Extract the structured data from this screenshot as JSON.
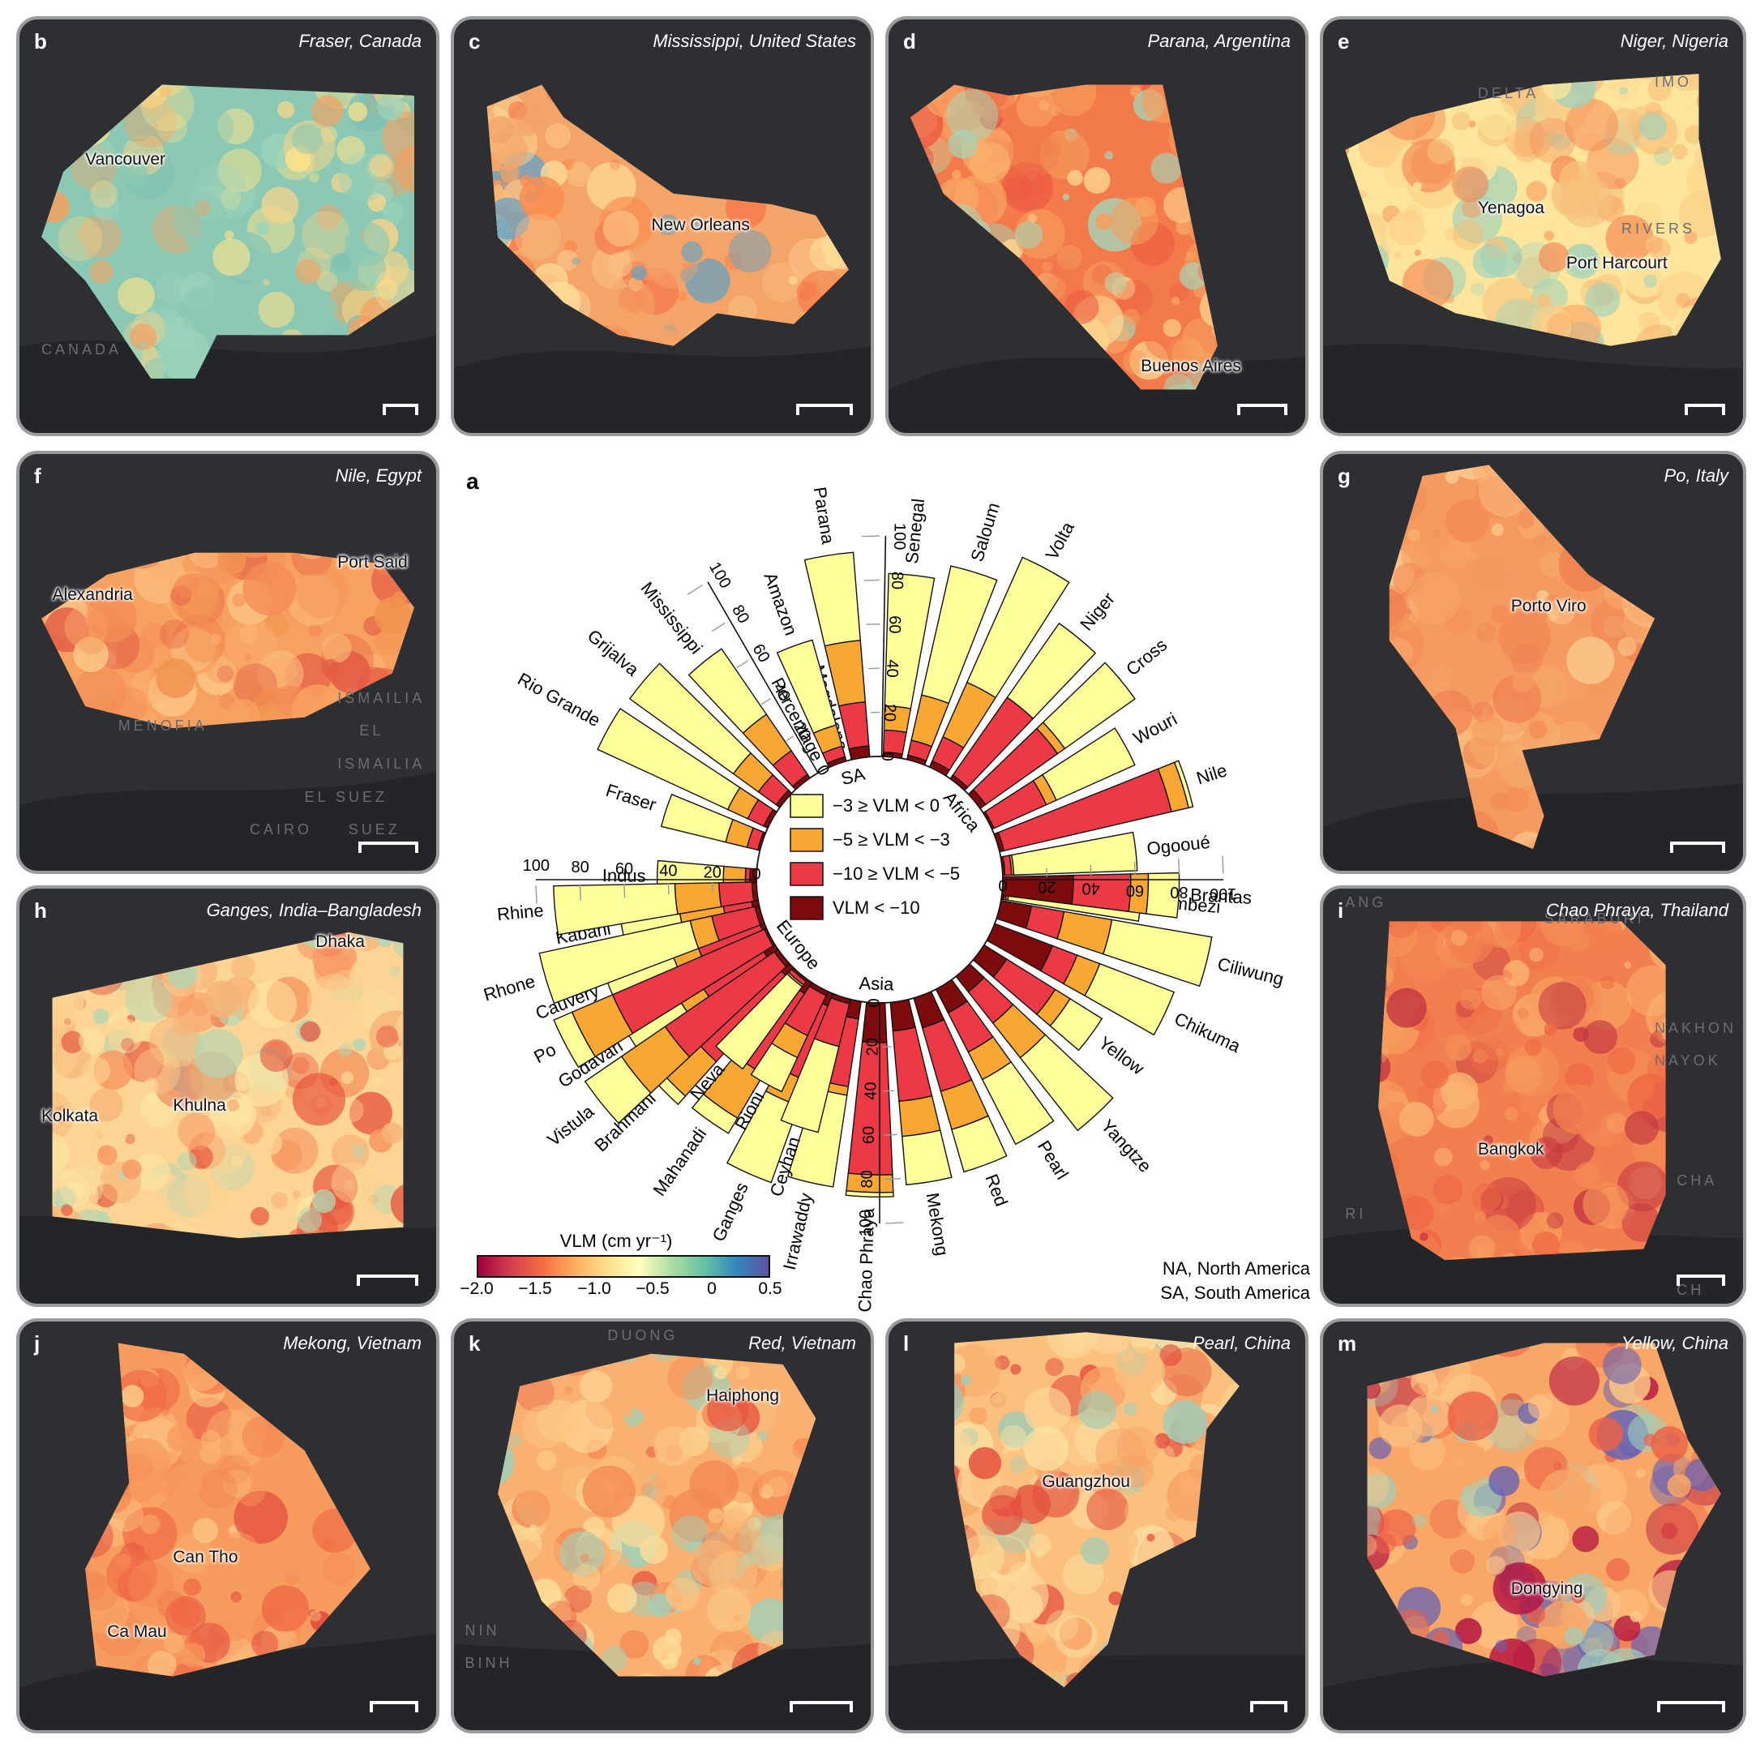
{
  "panels": {
    "b": {
      "label": "b",
      "title": "Fraser, Canada",
      "cities": [
        "Vancouver"
      ],
      "bg": [
        "CANADA"
      ]
    },
    "c": {
      "label": "c",
      "title": "Mississippi, United States",
      "cities": [
        "New Orleans"
      ],
      "bg": []
    },
    "d": {
      "label": "d",
      "title": "Parana, Argentina",
      "cities": [
        "Buenos Aires"
      ],
      "bg": []
    },
    "e": {
      "label": "e",
      "title": "Niger, Nigeria",
      "cities": [
        "Yenagoa",
        "Port Harcourt"
      ],
      "bg": [
        "DELTA",
        "IMO",
        "RIVERS"
      ]
    },
    "f": {
      "label": "f",
      "title": "Nile, Egypt",
      "cities": [
        "Alexandria",
        "Port Said"
      ],
      "bg": [
        "MENOFIA",
        "ISMAILIA",
        "EL",
        "ISMAILIA",
        "EL SUEZ",
        "CAIRO",
        "SUEZ"
      ]
    },
    "g": {
      "label": "g",
      "title": "Po, Italy",
      "cities": [
        "Porto Viro"
      ],
      "bg": []
    },
    "h": {
      "label": "h",
      "title": "Ganges, India–Bangladesh",
      "cities": [
        "Dhaka",
        "Kolkata",
        "Khulna"
      ],
      "bg": []
    },
    "i": {
      "label": "i",
      "title": "Chao Phraya, Thailand",
      "cities": [
        "Bangkok"
      ],
      "bg": [
        "ANG",
        "SARABURI",
        "NAKHON",
        "NAYOK",
        "CHA",
        "RI",
        "CH"
      ]
    },
    "j": {
      "label": "j",
      "title": "Mekong, Vietnam",
      "cities": [
        "Can Tho",
        "Ca Mau"
      ],
      "bg": []
    },
    "k": {
      "label": "k",
      "title": "Red, Vietnam",
      "cities": [
        "Haiphong"
      ],
      "bg": [
        "DUONG",
        "NIN",
        "BINH"
      ]
    },
    "l": {
      "label": "l",
      "title": "Pearl, China",
      "cities": [
        "Guangzhou"
      ],
      "bg": []
    },
    "m": {
      "label": "m",
      "title": "Yellow, China",
      "cities": [
        "Dongying"
      ],
      "bg": []
    }
  },
  "legend": {
    "items": [
      {
        "label": "−3 ≥ VLM < 0",
        "color": "#ffff99"
      },
      {
        "label": "−5 ≥ VLM < −3",
        "color": "#f8a733"
      },
      {
        "label": "−10 ≥ VLM < −5",
        "color": "#ec3946"
      },
      {
        "label": "VLM < −10",
        "color": "#7d0b0d"
      }
    ]
  },
  "colorbar": {
    "title": "VLM (cm yr⁻¹)",
    "ticks": [
      "−2.0",
      "−1.5",
      "−1.0",
      "−0.5",
      "0",
      "0.5"
    ],
    "range": [
      -2.0,
      0.5
    ]
  },
  "abbreviations": [
    "NA, North America",
    "SA, South America"
  ],
  "chart_data": {
    "type": "bar",
    "label": "a",
    "layout": "radial stacked bar",
    "value_range": [
      0,
      100
    ],
    "radial_tick_labels": [
      "0",
      "20",
      "40",
      "60",
      "80",
      "100"
    ],
    "legend_placement": "center",
    "series_names": [
      "−3 ≥ VLM < 0",
      "−5 ≥ VLM < −3",
      "−10 ≥ VLM < −5",
      "VLM < −10"
    ],
    "groups": [
      {
        "name": "Africa",
        "deltas": [
          {
            "name": "Senegal",
            "values": [
              60,
              11,
              10,
              2
            ]
          },
          {
            "name": "Saloum",
            "values": [
              60,
              21,
              7,
              2
            ]
          },
          {
            "name": "Volta",
            "values": [
              62,
              27,
              12,
              3
            ]
          },
          {
            "name": "Niger",
            "values": [
              41,
              0,
              43,
              2
            ]
          },
          {
            "name": "Cross",
            "values": [
              39,
              4,
              40,
              3
            ]
          },
          {
            "name": "Wouri",
            "values": [
              39,
              5,
              26,
              1
            ]
          },
          {
            "name": "Nile",
            "values": [
              2,
              8,
              78,
              2
            ]
          },
          {
            "name": "Ogooué",
            "values": [
              56,
              1,
              3,
              1
            ]
          },
          {
            "name": "Zambezi",
            "values": [
              60,
              1,
              1,
              1
            ]
          }
        ]
      },
      {
        "name": "Asia",
        "deltas": [
          {
            "name": "Brantas",
            "values": [
              14,
              8,
              26,
              32
            ]
          },
          {
            "name": "Ciliwung",
            "values": [
              46,
              22,
              15,
              14
            ]
          },
          {
            "name": "Chikuma",
            "values": [
              36,
              11,
              12,
              28
            ]
          },
          {
            "name": "Yellow",
            "values": [
              17,
              8,
              26,
              12
            ]
          },
          {
            "name": "Yangtze",
            "values": [
              42,
              20,
              18,
              9
            ]
          },
          {
            "name": "Pearl",
            "values": [
              33,
              14,
              20,
              12
            ]
          },
          {
            "name": "Red",
            "values": [
              20,
              18,
              30,
              14
            ]
          },
          {
            "name": "Mekong",
            "values": [
              22,
              16,
              32,
              13
            ]
          },
          {
            "name": "Chao Phraya",
            "values": [
              2,
              8,
              60,
              18
            ]
          },
          {
            "name": "Irrawaddy",
            "values": [
              42,
              4,
              31,
              8
            ]
          },
          {
            "name": "Ganges",
            "values": [
              37,
              12,
              35,
              6
            ]
          },
          {
            "name": "Mahanadi",
            "values": [
              8,
              23,
              41,
              6
            ]
          },
          {
            "name": "Brahmani",
            "values": [
              5,
              21,
              50,
              5
            ]
          },
          {
            "name": "Godavari",
            "values": [
              28,
              12,
              32,
              6
            ]
          },
          {
            "name": "Cauvery",
            "values": [
              32,
              12,
              30,
              2
            ]
          },
          {
            "name": "Kabani",
            "values": [
              27,
              20,
              13,
              3
            ]
          },
          {
            "name": "Indus",
            "values": [
              30,
              10,
              2,
              3
            ]
          }
        ]
      },
      {
        "name": "Europe",
        "deltas": [
          {
            "name": "Ceyhan",
            "values": [
              40,
              0,
              20,
              2
            ]
          },
          {
            "name": "Rioni",
            "values": [
              17,
              11,
              20,
              2
            ]
          },
          {
            "name": "Neva",
            "values": [
              46,
              1,
              2,
              1
            ]
          },
          {
            "name": "Vistula",
            "values": [
              20,
              24,
              60,
              2
            ]
          },
          {
            "name": "Po",
            "values": [
              9,
              20,
              75,
              1
            ]
          },
          {
            "name": "Rhone",
            "values": [
              70,
              10,
              20,
              2
            ]
          },
          {
            "name": "Rhine",
            "values": [
              55,
              20,
              15,
              2
            ]
          }
        ]
      },
      {
        "name": "NA",
        "deltas": [
          {
            "name": "Fraser",
            "values": [
              30,
              10,
              5,
              1
            ]
          },
          {
            "name": "Rio Grande",
            "values": [
              65,
              10,
              8,
              2
            ]
          },
          {
            "name": "Grijalva",
            "values": [
              58,
              14,
              10,
              2
            ]
          },
          {
            "name": "Mississippi",
            "values": [
              36,
              20,
              13,
              2
            ]
          },
          {
            "name": "Percentage",
            "values": [
              0,
              0,
              0,
              0
            ]
          },
          {
            "name": "Magdalena",
            "values": [
              0,
              0,
              0,
              0
            ]
          }
        ]
      },
      {
        "name": "SA",
        "deltas": [
          {
            "name": "Amazon",
            "values": [
              40,
              10,
              5,
              2
            ]
          },
          {
            "name": "Parana",
            "values": [
              40,
              28,
              20,
              5
            ]
          }
        ]
      }
    ]
  }
}
